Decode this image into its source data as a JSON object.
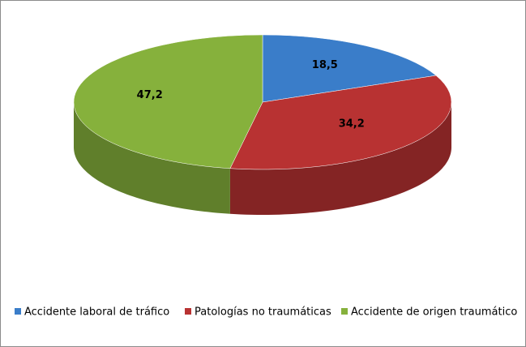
{
  "chart_data": {
    "type": "pie3d",
    "categories": [
      "Accidente laboral de tráfico",
      "Patologías no traumáticas",
      "Accidente de origen traumático"
    ],
    "values": [
      18.5,
      34.2,
      47.2
    ],
    "value_labels": [
      "18,5",
      "34,2",
      "47,2"
    ],
    "colors": [
      "#3a7dc9",
      "#b83232",
      "#86b13c"
    ],
    "legend": "bottom"
  }
}
